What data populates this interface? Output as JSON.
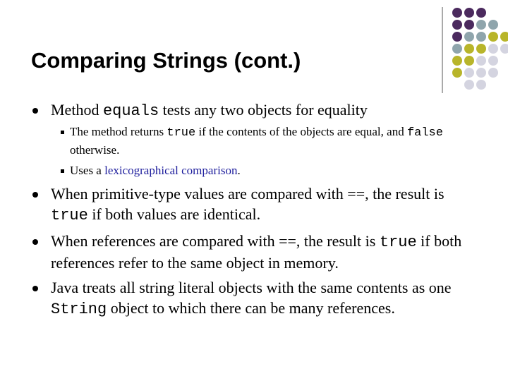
{
  "title": "Comparing Strings (cont.)",
  "bullets": [
    {
      "parts": [
        "Method ",
        "equals",
        " tests any two objects for equality"
      ],
      "sub_bullets": [
        {
          "parts": [
            "The method returns ",
            "true",
            " if the contents of the objects are equal, and ",
            "false",
            " otherwise."
          ]
        },
        {
          "parts": [
            "Uses a ",
            "lexicographical comparison",
            "."
          ]
        }
      ]
    },
    {
      "parts": [
        "When primitive-type values are compared with ==, the result is ",
        "true",
        " if both values are identical."
      ]
    },
    {
      "parts": [
        "When references are compared with ==, the result is ",
        "true",
        " if both references refer to the same object in memory."
      ]
    },
    {
      "parts": [
        "Java treats all string literal objects with the same contents as one ",
        "String",
        " object to which there can be many references."
      ]
    }
  ]
}
